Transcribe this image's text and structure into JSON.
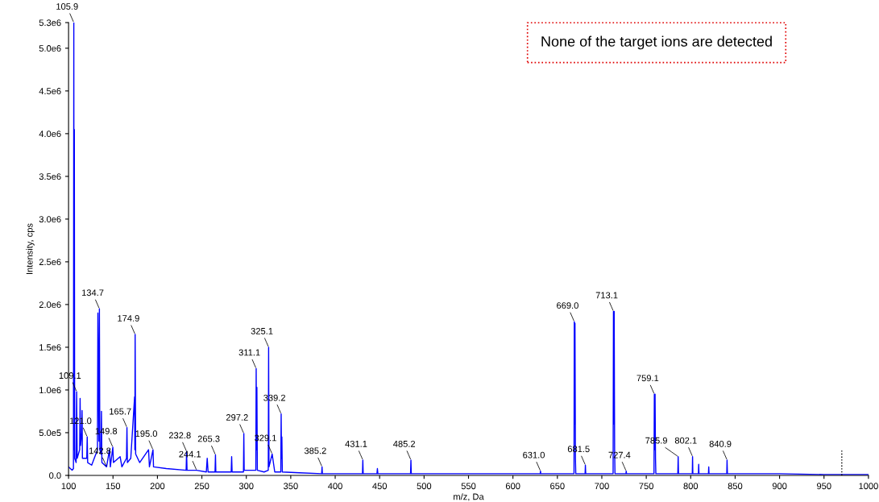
{
  "chart_data": {
    "type": "line",
    "xlabel": "m/z, Da",
    "ylabel": "Intensity, cps",
    "xlim": [
      100,
      1000
    ],
    "ylim": [
      0,
      5300000
    ],
    "xticks": [
      100,
      150,
      200,
      250,
      300,
      350,
      400,
      450,
      500,
      550,
      600,
      650,
      700,
      750,
      800,
      850,
      900,
      950,
      1000
    ],
    "yticks": [
      {
        "value": 0,
        "label": "0.0"
      },
      {
        "value": 500000,
        "label": "5.0e5"
      },
      {
        "value": 1000000,
        "label": "1.0e6"
      },
      {
        "value": 1500000,
        "label": "1.5e6"
      },
      {
        "value": 2000000,
        "label": "2.0e6"
      },
      {
        "value": 2500000,
        "label": "2.5e6"
      },
      {
        "value": 3000000,
        "label": "3.0e6"
      },
      {
        "value": 3500000,
        "label": "3.5e6"
      },
      {
        "value": 4000000,
        "label": "4.0e6"
      },
      {
        "value": 4500000,
        "label": "4.5e6"
      },
      {
        "value": 5000000,
        "label": "5.0e6"
      },
      {
        "value": 5300000,
        "label": "5.3e6"
      }
    ],
    "grid": false,
    "legend": false,
    "series": [
      {
        "color": "#0000ff",
        "x": [
          100,
          104,
          105.5,
          105.9,
          106.2,
          106.5,
          106.9,
          108.5,
          109.1,
          109.7,
          112.5,
          113,
          113.5,
          114.8,
          115.2,
          115.6,
          120.5,
          121,
          121.5,
          126,
          132.5,
          133,
          133.5,
          134.2,
          134.7,
          135.2,
          136.5,
          137,
          137.5,
          142.8,
          146,
          147,
          149.8,
          150.5,
          158,
          160,
          165.2,
          165.7,
          166.2,
          170,
          174.3,
          174.6,
          174.9,
          175.5,
          180,
          190,
          191,
          195,
          195.6,
          210,
          232.3,
          232.8,
          233.3,
          244.1,
          255,
          256,
          257,
          264.8,
          265.3,
          265.7,
          283,
          283.5,
          284,
          296.8,
          297.2,
          297.6,
          310.7,
          311.1,
          311.5,
          311.9,
          312.4,
          320,
          324.7,
          325.1,
          325.5,
          329.1,
          332,
          338.8,
          339.2,
          339.6,
          340,
          340.5,
          360,
          384.8,
          385.2,
          385.6,
          410,
          430.7,
          431.1,
          431.5,
          447,
          447.5,
          448,
          484.8,
          485.2,
          485.6,
          550,
          630.7,
          631,
          631.3,
          668.7,
          669,
          669.4,
          669.8,
          670.3,
          670.7,
          681.2,
          681.5,
          681.9,
          712.7,
          713.1,
          713.5,
          713.9,
          714.4,
          714.8,
          727.2,
          727.4,
          727.8,
          758.7,
          759.1,
          759.5,
          759.9,
          760.4,
          760.8,
          785.5,
          785.9,
          786.3,
          801.8,
          802.1,
          802.4,
          808.7,
          809,
          809.3,
          820,
          820.3,
          820.6,
          840.6,
          840.9,
          841.3,
          860,
          900,
          950,
          1000
        ],
        "values": [
          100000,
          60000,
          80000,
          5300000,
          300000,
          4050000,
          200000,
          150000,
          980000,
          200000,
          300000,
          900000,
          350000,
          500000,
          760000,
          200000,
          200000,
          450000,
          150000,
          120000,
          300000,
          1900000,
          1280000,
          400000,
          1950000,
          300000,
          250000,
          750000,
          150000,
          100000,
          300000,
          100000,
          330000,
          150000,
          220000,
          100000,
          200000,
          560000,
          150000,
          200000,
          920000,
          300000,
          1650000,
          250000,
          150000,
          300000,
          100000,
          300000,
          100000,
          80000,
          60000,
          280000,
          60000,
          60000,
          40000,
          200000,
          40000,
          40000,
          240000,
          40000,
          40000,
          220000,
          40000,
          40000,
          490000,
          60000,
          60000,
          1250000,
          300000,
          1030000,
          60000,
          40000,
          60000,
          1500000,
          100000,
          250000,
          40000,
          40000,
          720000,
          200000,
          450000,
          40000,
          30000,
          20000,
          100000,
          20000,
          20000,
          20000,
          180000,
          20000,
          20000,
          80000,
          20000,
          20000,
          180000,
          20000,
          20000,
          20000,
          50000,
          20000,
          20000,
          1800000,
          600000,
          1780000,
          200000,
          20000,
          20000,
          120000,
          20000,
          20000,
          1920000,
          600000,
          1920000,
          300000,
          20000,
          20000,
          50000,
          20000,
          20000,
          950000,
          300000,
          950000,
          200000,
          20000,
          20000,
          220000,
          20000,
          20000,
          220000,
          20000,
          20000,
          130000,
          20000,
          20000,
          100000,
          20000,
          20000,
          180000,
          20000,
          20000,
          20000,
          10000,
          10000
        ]
      },
      {
        "color": "#000000",
        "line_style": "dotted",
        "x": [
          970,
          970
        ],
        "values": [
          0,
          300000
        ]
      }
    ],
    "annotations": [
      "None of the target ions are detected",
      {
        "text": "105.9",
        "x": 105.9,
        "y": 5300000
      },
      {
        "text": "109.1",
        "x": 109.1,
        "y": 980000
      },
      {
        "text": "121.0",
        "x": 121,
        "y": 450000
      },
      {
        "text": "134.7",
        "x": 134.7,
        "y": 1950000
      },
      {
        "text": "142.8",
        "x": 142.8,
        "y": 100000
      },
      {
        "text": "149.8",
        "x": 149.8,
        "y": 330000
      },
      {
        "text": "165.7",
        "x": 165.7,
        "y": 560000
      },
      {
        "text": "174.9",
        "x": 174.9,
        "y": 1650000
      },
      {
        "text": "195.0",
        "x": 195,
        "y": 300000
      },
      {
        "text": "232.8",
        "x": 232.8,
        "y": 280000
      },
      {
        "text": "244.1",
        "x": 244.1,
        "y": 60000
      },
      {
        "text": "265.3",
        "x": 265.3,
        "y": 240000
      },
      {
        "text": "297.2",
        "x": 297.2,
        "y": 490000
      },
      {
        "text": "311.1",
        "x": 311.1,
        "y": 1250000
      },
      {
        "text": "325.1",
        "x": 325.1,
        "y": 1500000
      },
      {
        "text": "329.1",
        "x": 329.1,
        "y": 250000
      },
      {
        "text": "339.2",
        "x": 339.2,
        "y": 720000
      },
      {
        "text": "385.2",
        "x": 385.2,
        "y": 100000
      },
      {
        "text": "431.1",
        "x": 431.1,
        "y": 180000
      },
      {
        "text": "485.2",
        "x": 485.2,
        "y": 180000
      },
      {
        "text": "631.0",
        "x": 631,
        "y": 50000
      },
      {
        "text": "669.0",
        "x": 669,
        "y": 1800000
      },
      {
        "text": "681.5",
        "x": 681.5,
        "y": 120000
      },
      {
        "text": "713.1",
        "x": 713.1,
        "y": 1920000
      },
      {
        "text": "727.4",
        "x": 727.4,
        "y": 50000
      },
      {
        "text": "759.1",
        "x": 759.1,
        "y": 950000
      },
      {
        "text": "785.9",
        "x": 785.9,
        "y": 220000
      },
      {
        "text": "802.1",
        "x": 802.1,
        "y": 220000
      },
      {
        "text": "840.9",
        "x": 840.9,
        "y": 180000
      }
    ]
  }
}
